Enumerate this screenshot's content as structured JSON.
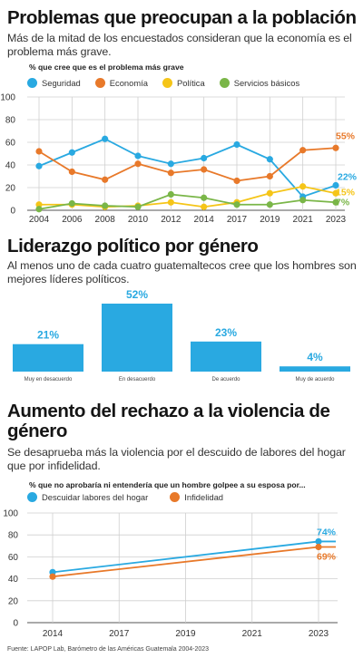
{
  "chart_data": [
    {
      "type": "line",
      "title": "Problemas que preocupan a la población",
      "subtitle": "Más de la mitad de los encuestados consideran que la economía es el problema más grave.",
      "note": "% que cree que es el problema más grave",
      "x": [
        "2004",
        "2006",
        "2008",
        "2010",
        "2012",
        "2014",
        "2017",
        "2019",
        "2021",
        "2023"
      ],
      "ylim": [
        0,
        100
      ],
      "yticks": [
        "0",
        "20",
        "40",
        "60",
        "80",
        "100"
      ],
      "grid": true,
      "legend_position": "top-left",
      "series": [
        {
          "name": "Seguridad",
          "color": "#29a9e1",
          "values": [
            39,
            51,
            63,
            48,
            41,
            46,
            58,
            45,
            12,
            22
          ],
          "end_label": "22%"
        },
        {
          "name": "Economía",
          "color": "#e8792a",
          "values": [
            52,
            34,
            27,
            41,
            33,
            36,
            26,
            30,
            53,
            55
          ],
          "end_label": "55%"
        },
        {
          "name": "Política",
          "color": "#f5c518",
          "values": [
            5,
            5,
            3,
            4,
            7,
            3,
            7,
            15,
            21,
            15
          ],
          "end_label": "15%"
        },
        {
          "name": "Servicios básicos",
          "color": "#7ab648",
          "values": [
            1,
            6,
            4,
            3,
            14,
            11,
            5,
            5,
            9,
            7
          ],
          "end_label": "7%"
        }
      ]
    },
    {
      "type": "bar",
      "title": "Liderazgo político por género",
      "subtitle": "Al menos uno de cada cuatro guatemaltecos cree que los hombres son mejores líderes políticos.",
      "categories": [
        "Muy en desacuerdo",
        "En desacuerdo",
        "De acuerdo",
        "Muy de acuerdo"
      ],
      "values": [
        21,
        52,
        23,
        4
      ],
      "labels": [
        "21%",
        "52%",
        "23%",
        "4%"
      ],
      "color": "#29a9e1",
      "ylim": [
        0,
        52
      ]
    },
    {
      "type": "line",
      "title": "Aumento del rechazo a la violencia de género",
      "subtitle": "Se desaprueba más la violencia por el descuido de labores del hogar que por infidelidad.",
      "note": "% que no aprobaría ni entendería que un hombre golpee a su esposa por...",
      "x": [
        "2014",
        "2017",
        "2019",
        "2021",
        "2023"
      ],
      "ylim": [
        0,
        100
      ],
      "yticks": [
        "0",
        "20",
        "40",
        "60",
        "80",
        "100"
      ],
      "grid": true,
      "legend_position": "top-left",
      "series": [
        {
          "name": "Descuidar labores del hogar",
          "color": "#29a9e1",
          "values": [
            46,
            null,
            null,
            null,
            74
          ],
          "end_label": "74%"
        },
        {
          "name": "Infidelidad",
          "color": "#e8792a",
          "values": [
            42,
            null,
            null,
            null,
            69
          ],
          "end_label": "69%"
        }
      ]
    }
  ],
  "source": "Fuente: LAPOP Lab, Barómetro de las Américas Guatemala 2004-2023"
}
